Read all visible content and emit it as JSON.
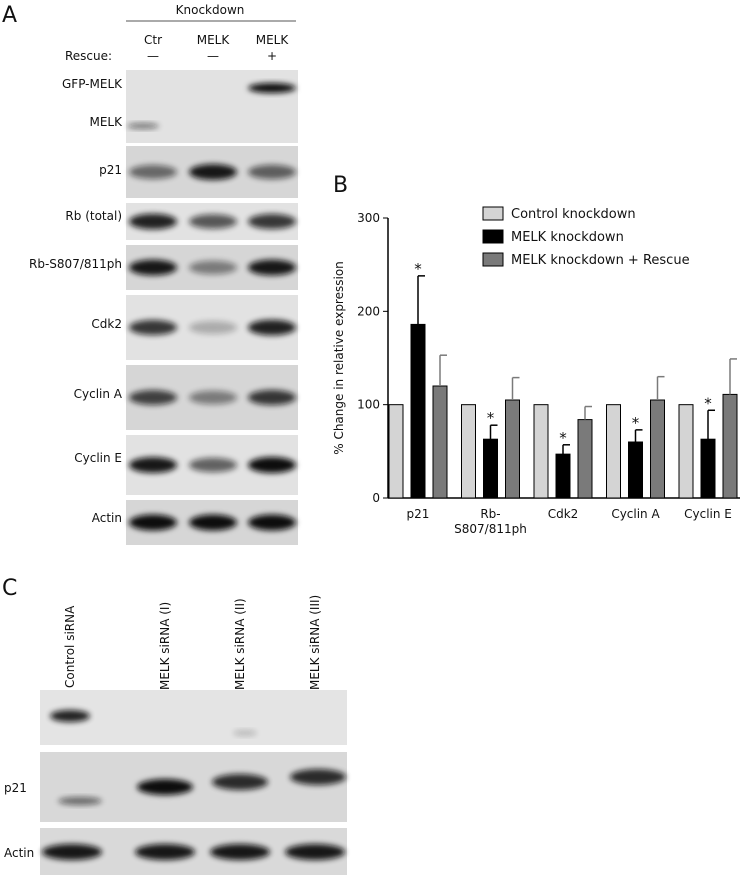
{
  "panel_a": {
    "letter": "A",
    "group_header": "Knockdown",
    "rescue_label": "Rescue:",
    "lanes": [
      {
        "name": "Ctr",
        "rescue": "—"
      },
      {
        "name": "MELK",
        "rescue": "—"
      },
      {
        "name": "MELK",
        "rescue": "+"
      }
    ],
    "blots": [
      "GFP-MELK",
      "MELK",
      "p21",
      "Rb (total)",
      "Rb-S807/811ph",
      "Cdk2",
      "Cyclin A",
      "Cyclin E",
      "Actin"
    ]
  },
  "chart_data": {
    "type": "bar",
    "letter": "B",
    "y_label": "% Change in relative expression",
    "categories": [
      "p21",
      "Rb-\nS807/811ph",
      "Cdk2",
      "Cyclin A",
      "Cyclin E"
    ],
    "series": [
      {
        "name": "Control knockdown",
        "color": "#d4d4d4",
        "values": [
          100,
          100,
          100,
          100,
          100
        ]
      },
      {
        "name": "MELK knockdown",
        "color": "#000000",
        "values": [
          186,
          63,
          47,
          60,
          63
        ],
        "errors": [
          52,
          15,
          10,
          13,
          31
        ],
        "significance": [
          "*",
          "*",
          "*",
          "*",
          "*"
        ]
      },
      {
        "name": "MELK knockdown + Rescue",
        "color": "#7a7a7a",
        "values": [
          120,
          105,
          84,
          105,
          111
        ],
        "errors": [
          33,
          24,
          14,
          25,
          38
        ]
      }
    ],
    "ylim": [
      0,
      300
    ],
    "yticks": [
      0,
      100,
      200,
      300
    ],
    "grid": false,
    "legend": "top-right"
  },
  "panel_c": {
    "letter": "C",
    "lanes": [
      "Control siRNA",
      "MELK siRNA (I)",
      "MELK siRNA (II)",
      "MELK siRNA (III)"
    ],
    "rows": [
      "p21",
      "Actin"
    ]
  }
}
